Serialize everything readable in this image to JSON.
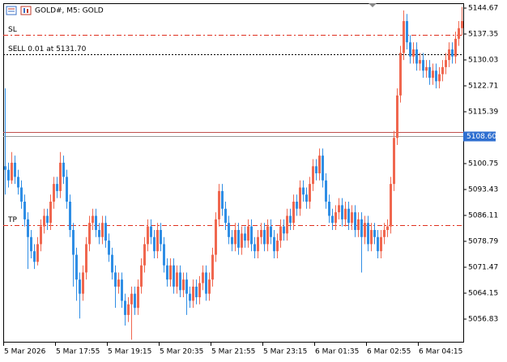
{
  "chart_data": {
    "type": "candlestick",
    "title": "GOLD#, M5:  GOLD",
    "up_color": "#f0674f",
    "down_color": "#2f8ee5",
    "xlim": [
      0,
      142
    ],
    "ylim": [
      5050.43,
      5146.04
    ],
    "yticks": [
      5144.67,
      5137.35,
      5130.03,
      5122.71,
      5115.39,
      5100.75,
      5093.43,
      5086.11,
      5078.79,
      5071.47,
      5064.15,
      5056.83
    ],
    "xticks": [
      {
        "value": 0,
        "label": "5 Mar 2026"
      },
      {
        "value": 16,
        "label": "5 Mar 17:55"
      },
      {
        "value": 32,
        "label": "5 Mar 19:15"
      },
      {
        "value": 48,
        "label": "5 Mar 20:35"
      },
      {
        "value": 64,
        "label": "5 Mar 21:55"
      },
      {
        "value": 80,
        "label": "5 Mar 23:15"
      },
      {
        "value": 96,
        "label": "6 Mar 01:35"
      },
      {
        "value": 112,
        "label": "6 Mar 02:55"
      },
      {
        "value": 128,
        "label": "6 Mar 04:15"
      }
    ],
    "levels": [
      {
        "name": "SL",
        "value": 5137.1,
        "color": "#e0301e",
        "style": "dashdot"
      },
      {
        "name": "SELL 0.01 at 5131.70",
        "value": 5131.7,
        "color": "#000000",
        "style": "dot"
      },
      {
        "name": "TP",
        "value": 5083.4,
        "color": "#e0301e",
        "style": "dashdot"
      }
    ],
    "ask": 5109.67,
    "ask_color": "#c0504d",
    "bid": {
      "value": 5108.6,
      "label": "5108.60"
    },
    "bid_color": "#2f6fd0",
    "candles": [
      [
        5100,
        5122,
        5092,
        5099
      ],
      [
        5099,
        5101,
        5094,
        5096
      ],
      [
        5096,
        5104,
        5095,
        5101
      ],
      [
        5101,
        5103,
        5095,
        5097
      ],
      [
        5097,
        5099,
        5092,
        5094
      ],
      [
        5094,
        5096,
        5088,
        5090
      ],
      [
        5090,
        5092,
        5083,
        5085
      ],
      [
        5085,
        5087,
        5071,
        5080
      ],
      [
        5080,
        5082,
        5074,
        5076
      ],
      [
        5076,
        5078,
        5071,
        5073
      ],
      [
        5073,
        5080,
        5072,
        5078
      ],
      [
        5078,
        5085,
        5076,
        5083
      ],
      [
        5083,
        5088,
        5081,
        5086
      ],
      [
        5086,
        5088,
        5082,
        5084
      ],
      [
        5084,
        5092,
        5082,
        5090
      ],
      [
        5090,
        5097,
        5088,
        5095
      ],
      [
        5095,
        5097,
        5091,
        5093
      ],
      [
        5093,
        5104,
        5091,
        5101
      ],
      [
        5101,
        5103,
        5095,
        5097
      ],
      [
        5097,
        5099,
        5088,
        5090
      ],
      [
        5090,
        5092,
        5080,
        5082
      ],
      [
        5082,
        5084,
        5066,
        5075
      ],
      [
        5075,
        5077,
        5062,
        5068
      ],
      [
        5068,
        5070,
        5057,
        5064
      ],
      [
        5064,
        5072,
        5062,
        5070
      ],
      [
        5070,
        5080,
        5068,
        5078
      ],
      [
        5078,
        5086,
        5076,
        5084
      ],
      [
        5084,
        5088,
        5082,
        5086
      ],
      [
        5086,
        5088,
        5080,
        5082
      ],
      [
        5082,
        5084,
        5078,
        5080
      ],
      [
        5080,
        5086,
        5078,
        5084
      ],
      [
        5084,
        5086,
        5077,
        5079
      ],
      [
        5079,
        5081,
        5073,
        5075
      ],
      [
        5075,
        5077,
        5068,
        5070
      ],
      [
        5070,
        5072,
        5060,
        5066
      ],
      [
        5066,
        5070,
        5064,
        5068
      ],
      [
        5068,
        5070,
        5060,
        5062
      ],
      [
        5062,
        5064,
        5055,
        5058
      ],
      [
        5058,
        5063,
        5056,
        5061
      ],
      [
        5061,
        5066,
        5051,
        5064
      ],
      [
        5064,
        5066,
        5058,
        5060
      ],
      [
        5060,
        5068,
        5058,
        5066
      ],
      [
        5066,
        5074,
        5064,
        5072
      ],
      [
        5072,
        5080,
        5070,
        5078
      ],
      [
        5078,
        5085,
        5076,
        5083
      ],
      [
        5083,
        5085,
        5078,
        5080
      ],
      [
        5080,
        5082,
        5074,
        5076
      ],
      [
        5076,
        5084,
        5074,
        5082
      ],
      [
        5082,
        5084,
        5076,
        5078
      ],
      [
        5078,
        5080,
        5070,
        5072
      ],
      [
        5072,
        5074,
        5066,
        5068
      ],
      [
        5068,
        5074,
        5066,
        5072
      ],
      [
        5072,
        5074,
        5064,
        5066
      ],
      [
        5066,
        5072,
        5064,
        5070
      ],
      [
        5070,
        5072,
        5063,
        5065
      ],
      [
        5065,
        5070,
        5063,
        5068
      ],
      [
        5068,
        5070,
        5058,
        5064
      ],
      [
        5064,
        5066,
        5060,
        5062
      ],
      [
        5062,
        5068,
        5060,
        5066
      ],
      [
        5066,
        5068,
        5061,
        5063
      ],
      [
        5063,
        5069,
        5061,
        5067
      ],
      [
        5067,
        5072,
        5065,
        5070
      ],
      [
        5070,
        5072,
        5062,
        5064
      ],
      [
        5064,
        5070,
        5062,
        5068
      ],
      [
        5068,
        5077,
        5066,
        5075
      ],
      [
        5075,
        5087,
        5073,
        5085
      ],
      [
        5085,
        5095,
        5083,
        5093
      ],
      [
        5093,
        5095,
        5086,
        5088
      ],
      [
        5088,
        5090,
        5082,
        5084
      ],
      [
        5084,
        5086,
        5078,
        5080
      ],
      [
        5080,
        5082,
        5076,
        5078
      ],
      [
        5078,
        5084,
        5076,
        5082
      ],
      [
        5082,
        5084,
        5075,
        5077
      ],
      [
        5077,
        5083,
        5075,
        5081
      ],
      [
        5081,
        5083,
        5077,
        5079
      ],
      [
        5079,
        5085,
        5077,
        5083
      ],
      [
        5083,
        5085,
        5076,
        5078
      ],
      [
        5078,
        5080,
        5074,
        5076
      ],
      [
        5076,
        5082,
        5074,
        5080
      ],
      [
        5080,
        5084,
        5078,
        5082
      ],
      [
        5082,
        5084,
        5076,
        5078
      ],
      [
        5078,
        5085,
        5076,
        5083
      ],
      [
        5083,
        5085,
        5078,
        5080
      ],
      [
        5080,
        5082,
        5074,
        5076
      ],
      [
        5076,
        5081,
        5074,
        5079
      ],
      [
        5079,
        5085,
        5077,
        5083
      ],
      [
        5083,
        5085,
        5079,
        5081
      ],
      [
        5081,
        5088,
        5079,
        5086
      ],
      [
        5086,
        5088,
        5082,
        5084
      ],
      [
        5084,
        5092,
        5082,
        5090
      ],
      [
        5090,
        5092,
        5086,
        5088
      ],
      [
        5088,
        5096,
        5086,
        5094
      ],
      [
        5094,
        5096,
        5090,
        5092
      ],
      [
        5092,
        5094,
        5088,
        5090
      ],
      [
        5090,
        5097,
        5088,
        5095
      ],
      [
        5095,
        5102,
        5093,
        5100
      ],
      [
        5100,
        5102,
        5096,
        5098
      ],
      [
        5098,
        5105,
        5096,
        5103
      ],
      [
        5103,
        5105,
        5094,
        5096
      ],
      [
        5096,
        5098,
        5088,
        5090
      ],
      [
        5090,
        5092,
        5084,
        5086
      ],
      [
        5086,
        5088,
        5082,
        5084
      ],
      [
        5084,
        5089,
        5082,
        5087
      ],
      [
        5087,
        5091,
        5085,
        5089
      ],
      [
        5089,
        5091,
        5083,
        5085
      ],
      [
        5085,
        5090,
        5083,
        5088
      ],
      [
        5088,
        5090,
        5082,
        5084
      ],
      [
        5084,
        5089,
        5082,
        5087
      ],
      [
        5087,
        5089,
        5080,
        5082
      ],
      [
        5082,
        5087,
        5080,
        5085
      ],
      [
        5085,
        5087,
        5070,
        5080
      ],
      [
        5080,
        5086,
        5078,
        5084
      ],
      [
        5084,
        5086,
        5076,
        5078
      ],
      [
        5078,
        5084,
        5076,
        5082
      ],
      [
        5082,
        5084,
        5078,
        5080
      ],
      [
        5080,
        5082,
        5074,
        5076
      ],
      [
        5076,
        5082,
        5074,
        5080
      ],
      [
        5080,
        5084,
        5078,
        5082
      ],
      [
        5082,
        5085,
        5080,
        5083
      ],
      [
        5083,
        5097,
        5081,
        5095
      ],
      [
        5095,
        5110,
        5093,
        5108
      ],
      [
        5108,
        5122,
        5106,
        5120
      ],
      [
        5120,
        5134,
        5118,
        5132
      ],
      [
        5132,
        5144,
        5130,
        5141
      ],
      [
        5141,
        5143,
        5133,
        5135
      ],
      [
        5135,
        5137,
        5129,
        5131
      ],
      [
        5131,
        5135,
        5129,
        5133
      ],
      [
        5133,
        5135,
        5127,
        5129
      ],
      [
        5129,
        5132,
        5127,
        5130
      ],
      [
        5130,
        5132,
        5125,
        5127
      ],
      [
        5127,
        5130,
        5125,
        5128
      ],
      [
        5128,
        5130,
        5123,
        5125
      ],
      [
        5125,
        5129,
        5123,
        5127
      ],
      [
        5127,
        5129,
        5122,
        5124
      ],
      [
        5124,
        5128,
        5122,
        5126
      ],
      [
        5126,
        5130,
        5124,
        5128
      ],
      [
        5128,
        5132,
        5126,
        5130
      ],
      [
        5130,
        5135,
        5128,
        5133
      ],
      [
        5133,
        5135,
        5129,
        5131
      ],
      [
        5131,
        5138,
        5129,
        5136
      ],
      [
        5136,
        5141,
        5134,
        5139
      ],
      [
        5139,
        5145,
        5137,
        5141
      ]
    ]
  }
}
